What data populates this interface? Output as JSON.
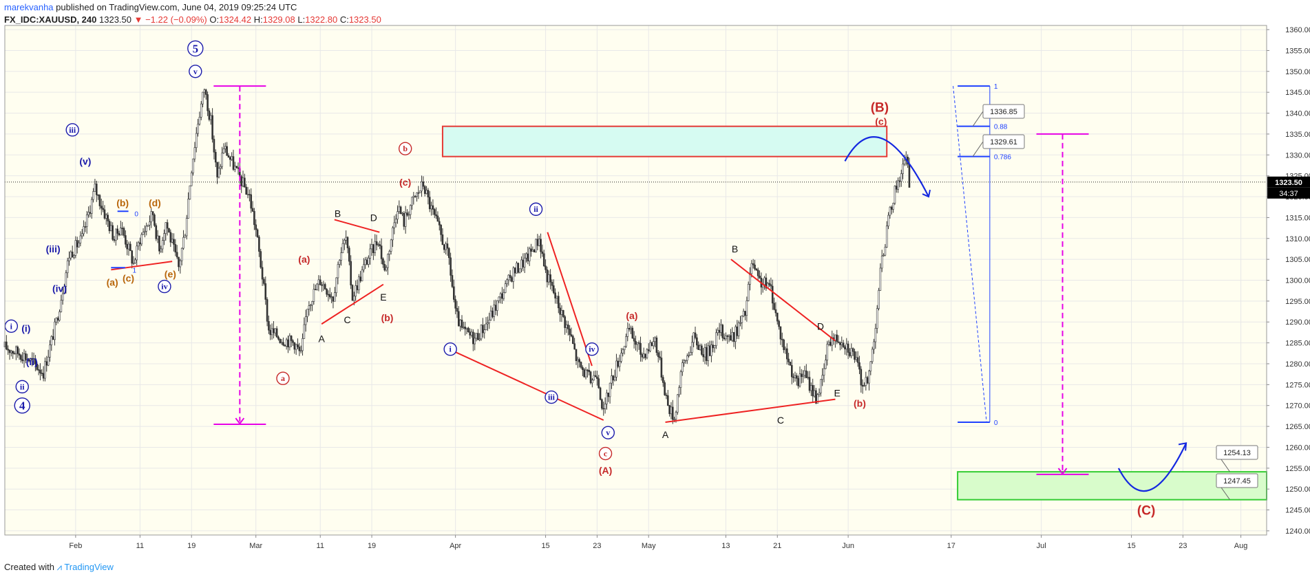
{
  "header": {
    "author": "marekvanha",
    "published_text": "published on TradingView.com, June 04, 2019 09:25:24 UTC",
    "symbol": "FX_IDC:XAUUSD, 240",
    "last": "1323.50",
    "change": "−1.22 (−0.09%)",
    "open_label": "O:",
    "open": "1324.42",
    "high_label": "H:",
    "high": "1329.08",
    "low_label": "L:",
    "low": "1322.80",
    "close_label": "C:",
    "close": "1323.50"
  },
  "footer": {
    "created_with": "Created with",
    "brand": "TradingView"
  },
  "colors": {
    "background": "#fffef0",
    "grid": "#e8e8e8",
    "candle": "#333333",
    "wave_red": "#c62828",
    "wave_blue": "#1a1aaa",
    "wave_orange": "#b8660b",
    "magenta": "#e600e6",
    "fib_blue": "#1e40ff",
    "resistance_fill": "#d6fbf2",
    "resistance_border": "#e53935",
    "target_fill": "#d8fccb",
    "target_border": "#33cc33",
    "price_tag": "#000000"
  },
  "chart_data": {
    "type": "candlestick",
    "series_name": "XAUUSD",
    "price_axis": {
      "ticks": [
        "1360.00",
        "1355.00",
        "1350.00",
        "1345.00",
        "1340.00",
        "1335.00",
        "1330.00",
        "1325.00",
        "1320.00",
        "1315.00",
        "1310.00",
        "1305.00",
        "1300.00",
        "1295.00",
        "1290.00",
        "1285.00",
        "1280.00",
        "1275.00",
        "1270.00",
        "1265.00",
        "1260.00",
        "1255.00",
        "1250.00",
        "1245.00",
        "1240.00"
      ],
      "range": [
        1239,
        1361
      ]
    },
    "time_axis": {
      "labels": [
        "Feb",
        "11",
        "19",
        "Mar",
        "11",
        "19",
        "Apr",
        "15",
        "23",
        "May",
        "13",
        "21",
        "Jun",
        "17",
        "Jul",
        "15",
        "23",
        "Aug"
      ],
      "label_days": [
        0,
        10,
        18,
        28,
        38,
        46,
        59,
        73,
        81,
        89,
        101,
        109,
        120,
        136,
        150,
        164,
        172,
        181
      ],
      "range_days": [
        -11,
        185
      ]
    },
    "current_price": {
      "value": "1323.50",
      "countdown": "34:37"
    },
    "price_path": [
      [
        -11,
        1284
      ],
      [
        -8,
        1282
      ],
      [
        -5,
        1278
      ],
      [
        -3,
        1290
      ],
      [
        -1,
        1306
      ],
      [
        1,
        1310
      ],
      [
        3,
        1322
      ],
      [
        4,
        1318
      ],
      [
        6,
        1310
      ],
      [
        7,
        1313
      ],
      [
        9,
        1304
      ],
      [
        10,
        1310
      ],
      [
        12,
        1316
      ],
      [
        13,
        1307
      ],
      [
        14,
        1314
      ],
      [
        16,
        1303
      ],
      [
        17,
        1312
      ],
      [
        18,
        1327
      ],
      [
        19,
        1338
      ],
      [
        20,
        1346
      ],
      [
        21,
        1338
      ],
      [
        22,
        1324
      ],
      [
        23,
        1332
      ],
      [
        25,
        1326
      ],
      [
        27,
        1320
      ],
      [
        28,
        1312
      ],
      [
        29,
        1301
      ],
      [
        30,
        1288
      ],
      [
        32,
        1286
      ],
      [
        34,
        1285
      ],
      [
        35,
        1282
      ],
      [
        36,
        1294
      ],
      [
        38,
        1300
      ],
      [
        40,
        1296
      ],
      [
        41,
        1306
      ],
      [
        42,
        1310
      ],
      [
        43,
        1296
      ],
      [
        45,
        1304
      ],
      [
        47,
        1310
      ],
      [
        48,
        1302
      ],
      [
        50,
        1318
      ],
      [
        51,
        1314
      ],
      [
        52,
        1318
      ],
      [
        54,
        1323
      ],
      [
        55,
        1318
      ],
      [
        56,
        1314
      ],
      [
        58,
        1305
      ],
      [
        59,
        1292
      ],
      [
        60,
        1288
      ],
      [
        62,
        1286
      ],
      [
        64,
        1290
      ],
      [
        66,
        1296
      ],
      [
        68,
        1302
      ],
      [
        70,
        1305
      ],
      [
        72,
        1310
      ],
      [
        73,
        1302
      ],
      [
        75,
        1294
      ],
      [
        77,
        1286
      ],
      [
        78,
        1280
      ],
      [
        80,
        1276
      ],
      [
        81,
        1278
      ],
      [
        82,
        1268
      ],
      [
        83,
        1275
      ],
      [
        85,
        1284
      ],
      [
        86,
        1288
      ],
      [
        88,
        1282
      ],
      [
        90,
        1286
      ],
      [
        91,
        1278
      ],
      [
        92,
        1270
      ],
      [
        93,
        1267
      ],
      [
        94,
        1278
      ],
      [
        96,
        1286
      ],
      [
        98,
        1282
      ],
      [
        100,
        1288
      ],
      [
        102,
        1286
      ],
      [
        104,
        1292
      ],
      [
        105,
        1304
      ],
      [
        106,
        1300
      ],
      [
        108,
        1298
      ],
      [
        109,
        1290
      ],
      [
        110,
        1284
      ],
      [
        112,
        1275
      ],
      [
        113,
        1278
      ],
      [
        115,
        1272
      ],
      [
        116,
        1276
      ],
      [
        117,
        1286
      ],
      [
        119,
        1286
      ],
      [
        121,
        1282
      ],
      [
        122,
        1276
      ],
      [
        123,
        1275
      ],
      [
        124,
        1286
      ],
      [
        125,
        1302
      ],
      [
        126,
        1312
      ],
      [
        127,
        1320
      ],
      [
        128,
        1325
      ],
      [
        129,
        1329
      ],
      [
        129.5,
        1323.5
      ]
    ],
    "resistance_zone": {
      "from_day": 57,
      "to_day": 126,
      "low": 1329.61,
      "high": 1336.85
    },
    "fib_levels": [
      {
        "ratio": "1",
        "price": 1346.5
      },
      {
        "ratio": "0.88",
        "price": 1336.85
      },
      {
        "ratio": "0.786",
        "price": 1329.61
      },
      {
        "ratio": "0",
        "price": 1266
      }
    ],
    "price_callouts": [
      "1336.85",
      "1329.61",
      "1254.13",
      "1247.45"
    ],
    "target_zone": {
      "from_day": 137,
      "to_day": 185,
      "low": 1247.45,
      "high": 1254.13
    },
    "wave_labels": [
      {
        "text": "5",
        "day": 18.6,
        "price": 1355.5,
        "color": "blue",
        "style": "double-circle"
      },
      {
        "text": "v",
        "day": 18.6,
        "price": 1350,
        "color": "blue",
        "style": "circle"
      },
      {
        "text": "iii",
        "day": -0.5,
        "price": 1336,
        "color": "blue",
        "style": "circle"
      },
      {
        "text": "(v)",
        "day": 1.5,
        "price": 1328.5,
        "color": "blue",
        "style": "plain"
      },
      {
        "text": "(iii)",
        "day": -3.5,
        "price": 1307.5,
        "color": "blue",
        "style": "plain"
      },
      {
        "text": "(iv)",
        "day": -2.5,
        "price": 1298,
        "color": "blue",
        "style": "plain"
      },
      {
        "text": "i",
        "day": -10,
        "price": 1289,
        "color": "blue",
        "style": "circle"
      },
      {
        "text": "(i)",
        "day": -7.7,
        "price": 1288.5,
        "color": "blue",
        "style": "plain"
      },
      {
        "text": "(ii)",
        "day": -6.8,
        "price": 1280.5,
        "color": "blue",
        "style": "plain"
      },
      {
        "text": "ii",
        "day": -8.3,
        "price": 1274.5,
        "color": "blue",
        "style": "circle"
      },
      {
        "text": "4",
        "day": -8.3,
        "price": 1270,
        "color": "blue",
        "style": "double-circle"
      },
      {
        "text": "iv",
        "day": 13.8,
        "price": 1298.5,
        "color": "blue",
        "style": "circle"
      },
      {
        "text": "(b)",
        "day": 7.3,
        "price": 1318.5,
        "color": "orange",
        "style": "plain"
      },
      {
        "text": "(d)",
        "day": 12.3,
        "price": 1318.5,
        "color": "orange",
        "style": "plain"
      },
      {
        "text": "(a)",
        "day": 5.7,
        "price": 1299.5,
        "color": "orange",
        "style": "plain"
      },
      {
        "text": "(c)",
        "day": 8.2,
        "price": 1300.5,
        "color": "orange",
        "style": "plain"
      },
      {
        "text": "(e)",
        "day": 14.7,
        "price": 1301.5,
        "color": "orange",
        "style": "plain"
      },
      {
        "text": "(a)",
        "day": 35.5,
        "price": 1305,
        "color": "red",
        "style": "plain"
      },
      {
        "text": "B",
        "day": 40.7,
        "price": 1316,
        "color": "black",
        "style": "plain"
      },
      {
        "text": "D",
        "day": 46.3,
        "price": 1315,
        "color": "black",
        "style": "plain"
      },
      {
        "text": "A",
        "day": 38.2,
        "price": 1286,
        "color": "black",
        "style": "plain"
      },
      {
        "text": "C",
        "day": 42.2,
        "price": 1290.5,
        "color": "black",
        "style": "plain"
      },
      {
        "text": "E",
        "day": 47.8,
        "price": 1296,
        "color": "black",
        "style": "plain"
      },
      {
        "text": "(b)",
        "day": 48.4,
        "price": 1291,
        "color": "red",
        "style": "plain"
      },
      {
        "text": "a",
        "day": 32.2,
        "price": 1276.5,
        "color": "red",
        "style": "circle"
      },
      {
        "text": "b",
        "day": 51.2,
        "price": 1331.5,
        "color": "red",
        "style": "circle"
      },
      {
        "text": "(c)",
        "day": 51.2,
        "price": 1323.5,
        "color": "red",
        "style": "plain"
      },
      {
        "text": "ii",
        "day": 71.5,
        "price": 1317,
        "color": "blue",
        "style": "circle"
      },
      {
        "text": "i",
        "day": 58.2,
        "price": 1283.5,
        "color": "blue",
        "style": "circle"
      },
      {
        "text": "iii",
        "day": 73.9,
        "price": 1272,
        "color": "blue",
        "style": "circle"
      },
      {
        "text": "iv",
        "day": 80.2,
        "price": 1283.5,
        "color": "blue",
        "style": "circle"
      },
      {
        "text": "v",
        "day": 82.7,
        "price": 1263.5,
        "color": "blue",
        "style": "circle"
      },
      {
        "text": "c",
        "day": 82.3,
        "price": 1258.5,
        "color": "red",
        "style": "circle"
      },
      {
        "text": "(A)",
        "day": 82.3,
        "price": 1254.5,
        "color": "red",
        "style": "plain"
      },
      {
        "text": "(a)",
        "day": 86.4,
        "price": 1291.5,
        "color": "red",
        "style": "plain"
      },
      {
        "text": "A",
        "day": 91.6,
        "price": 1263,
        "color": "black",
        "style": "plain"
      },
      {
        "text": "B",
        "day": 102.4,
        "price": 1307.5,
        "color": "black",
        "style": "plain"
      },
      {
        "text": "C",
        "day": 109.5,
        "price": 1266.5,
        "color": "black",
        "style": "plain"
      },
      {
        "text": "D",
        "day": 115.7,
        "price": 1289,
        "color": "black",
        "style": "plain"
      },
      {
        "text": "E",
        "day": 118.3,
        "price": 1273,
        "color": "black",
        "style": "plain"
      },
      {
        "text": "(b)",
        "day": 121.8,
        "price": 1270.5,
        "color": "red",
        "style": "plain"
      },
      {
        "text": "(B)",
        "day": 124.9,
        "price": 1341.5,
        "color": "red",
        "style": "plain-large"
      },
      {
        "text": "(c)",
        "day": 125.1,
        "price": 1338,
        "color": "red",
        "style": "plain"
      },
      {
        "text": "(C)",
        "day": 166.3,
        "price": 1245,
        "color": "red",
        "style": "plain-large"
      }
    ],
    "trend_lines": [
      {
        "color": "red",
        "from": [
          5.5,
          1302.5
        ],
        "to": [
          15,
          1304.5
        ]
      },
      {
        "color": "red",
        "from": [
          40.2,
          1314.5
        ],
        "to": [
          47.2,
          1311.5
        ]
      },
      {
        "color": "red",
        "from": [
          38.2,
          1289.5
        ],
        "to": [
          47.8,
          1299
        ]
      },
      {
        "color": "red",
        "from": [
          58,
          1283.5
        ],
        "to": [
          82,
          1266.5
        ]
      },
      {
        "color": "red",
        "from": [
          73.3,
          1311.5
        ],
        "to": [
          80.2,
          1279.5
        ]
      },
      {
        "color": "red",
        "from": [
          91.6,
          1266
        ],
        "to": [
          118,
          1271.5
        ]
      },
      {
        "color": "red",
        "from": [
          101.8,
          1305
        ],
        "to": [
          118,
          1285.5
        ]
      },
      {
        "color": "blue",
        "from": [
          6.5,
          1316.5
        ],
        "to": [
          8.2,
          1316.5
        ]
      },
      {
        "color": "blue",
        "from": [
          5.5,
          1303
        ],
        "to": [
          7.7,
          1303
        ]
      }
    ],
    "triangle_markers": [
      {
        "text": "0",
        "day": 8.5,
        "price": 1316
      },
      {
        "text": "1",
        "day": 8.2,
        "price": 1302.5
      }
    ],
    "measure_lines": [
      {
        "day": 25.5,
        "from": 1346.5,
        "to": 1265.5
      },
      {
        "day": 153.3,
        "from": 1335,
        "to": 1253.5
      }
    ],
    "projection_arrows": [
      {
        "color": "blue",
        "points": [
          [
            119.5,
            1328.5
          ],
          [
            124.8,
            1336
          ],
          [
            132.5,
            1320
          ]
        ]
      },
      {
        "color": "blue",
        "points": [
          [
            162,
            1255
          ],
          [
            166.5,
            1249
          ],
          [
            172.5,
            1261
          ]
        ]
      }
    ],
    "fib_diagonal": {
      "from": [
        136.3,
        1346.5
      ],
      "to": [
        141.5,
        1266
      ]
    }
  }
}
